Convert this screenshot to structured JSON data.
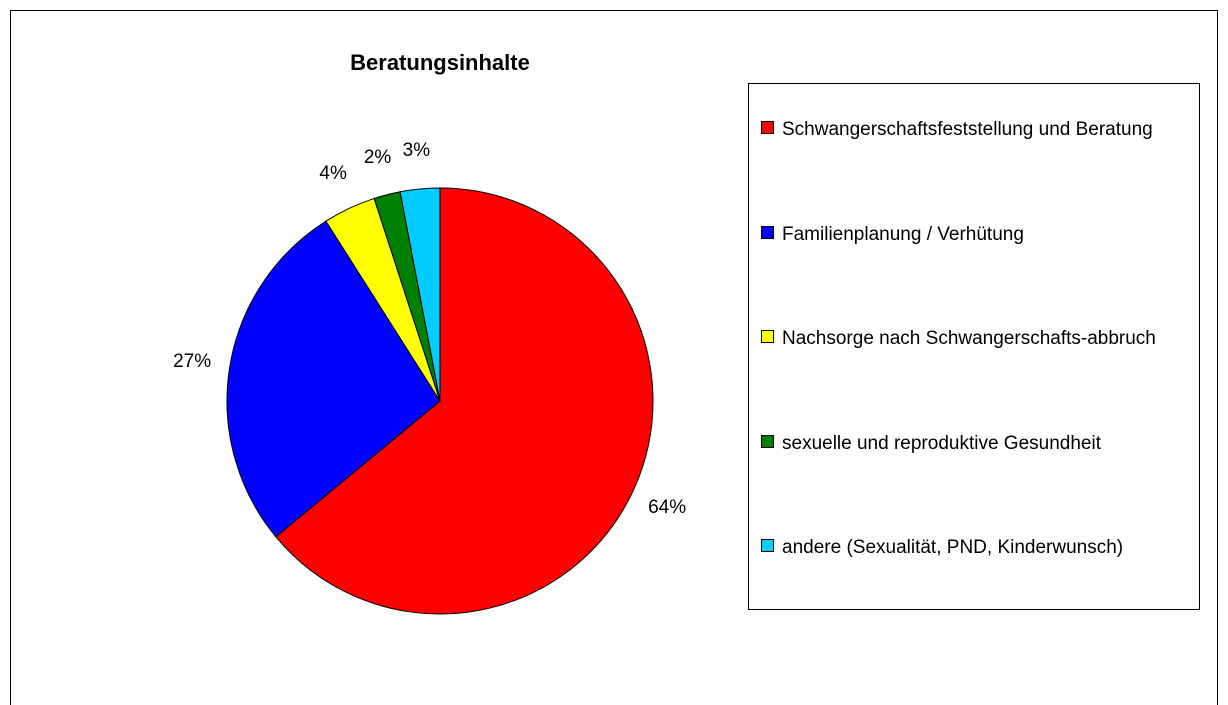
{
  "chart_data": {
    "type": "pie",
    "title": "Beratungsinhalte",
    "categories": [
      "Schwangerschaftsfeststellung und Beratung",
      "Familienplanung / Verhütung",
      "Nachsorge nach Schwangerschafts-abbruch",
      "sexuelle und reproduktive Gesundheit",
      "andere (Sexualität, PND, Kinderwunsch)"
    ],
    "values": [
      64,
      27,
      4,
      2,
      3
    ],
    "value_labels": [
      "64%",
      "27%",
      "4%",
      "2%",
      "3%"
    ],
    "colors": [
      "#ff0000",
      "#0000ff",
      "#ffff00",
      "#008000",
      "#00ccff"
    ],
    "legend": "right"
  }
}
